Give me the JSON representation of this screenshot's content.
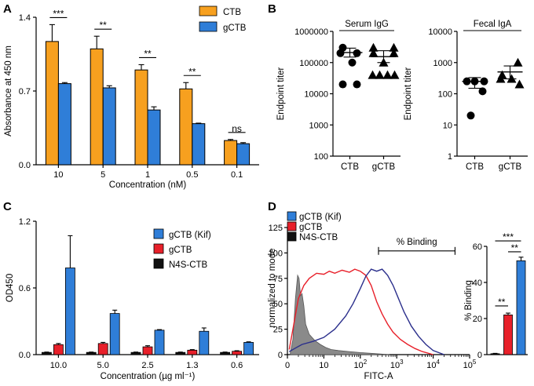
{
  "panels": {
    "A": "A",
    "B": "B",
    "C": "C",
    "D": "D"
  },
  "colors": {
    "orange": "#F7A01F",
    "blue": "#2F7ED8",
    "red": "#E8202A",
    "black": "#111111",
    "navy": "#2B2F8C",
    "redline": "#E8202A",
    "gray": "#8A8A8A"
  },
  "chart_data": [
    {
      "id": "A",
      "type": "bar",
      "title": "",
      "xlabel": "Concentration (nM)",
      "ylabel": "Absorbance at 450 nm",
      "ylim": [
        0,
        1.4
      ],
      "yticks": [
        "0.0",
        "0.7",
        "1.4"
      ],
      "categories": [
        "10",
        "5",
        "1",
        "0.5",
        "0.1"
      ],
      "series": [
        {
          "name": "CTB",
          "color": "#F7A01F",
          "values": [
            1.17,
            1.1,
            0.9,
            0.72,
            0.23
          ],
          "errors": [
            0.16,
            0.12,
            0.05,
            0.06,
            0.01
          ]
        },
        {
          "name": "gCTB",
          "color": "#2F7ED8",
          "values": [
            0.77,
            0.73,
            0.52,
            0.39,
            0.2
          ],
          "errors": [
            0.01,
            0.02,
            0.03,
            0.005,
            0.01
          ]
        }
      ],
      "significance": [
        "***",
        "**",
        "**",
        "**",
        "ns"
      ]
    },
    {
      "id": "B1",
      "type": "scatter",
      "title": "Serum IgG",
      "ylabel": "Endpoint titer",
      "yscale": "log",
      "ylim": [
        100,
        1000000
      ],
      "yticks": [
        "100",
        "1000",
        "10000",
        "100000",
        "1000000"
      ],
      "categories": [
        "CTB",
        "gCTB"
      ],
      "groups": [
        {
          "name": "CTB",
          "marker": "circle",
          "values": [
            300000,
            200000,
            200000,
            100000,
            20000,
            20000
          ],
          "mean": 210000,
          "sem_low": 150000,
          "sem_high": 290000
        },
        {
          "name": "gCTB",
          "marker": "triangle",
          "values": [
            300000,
            300000,
            200000,
            200000,
            100000,
            40000,
            40000,
            40000,
            40000
          ],
          "mean": 155000,
          "sem_low": 100000,
          "sem_high": 240000
        }
      ]
    },
    {
      "id": "B2",
      "type": "scatter",
      "title": "Fecal IgA",
      "ylabel": "Endpoint titer",
      "yscale": "log",
      "ylim": [
        1,
        10000
      ],
      "yticks": [
        "1",
        "10",
        "100",
        "1000",
        "10000"
      ],
      "categories": [
        "CTB",
        "gCTB"
      ],
      "groups": [
        {
          "name": "CTB",
          "marker": "circle",
          "values": [
            250,
            250,
            250,
            120,
            20
          ],
          "mean": 250,
          "sem_low": 150,
          "sem_high": 330
        },
        {
          "name": "gCTB",
          "marker": "triangle",
          "values": [
            1000,
            400,
            300,
            300,
            200
          ],
          "mean": 500,
          "sem_low": 300,
          "sem_high": 780
        }
      ]
    },
    {
      "id": "C",
      "type": "bar",
      "xlabel": "Concentration (µg ml⁻¹)",
      "ylabel": "OD450",
      "ylim": [
        0,
        1.2
      ],
      "yticks": [
        "0.0",
        "0.6",
        "1.2"
      ],
      "categories": [
        "10.0",
        "5.0",
        "2.5",
        "1.3",
        "0.6"
      ],
      "series": [
        {
          "name": "N4S-CTB",
          "color": "#111111",
          "values": [
            0.02,
            0.02,
            0.02,
            0.02,
            0.02
          ],
          "errors": [
            0.003,
            0.003,
            0.003,
            0.003,
            0.003
          ]
        },
        {
          "name": "gCTB",
          "color": "#E8202A",
          "values": [
            0.09,
            0.1,
            0.07,
            0.04,
            0.03
          ],
          "errors": [
            0.01,
            0.01,
            0.01,
            0.005,
            0.005
          ]
        },
        {
          "name": "gCTB (Kif)",
          "color": "#2F7ED8",
          "values": [
            0.78,
            0.37,
            0.22,
            0.21,
            0.11
          ],
          "errors": [
            0.29,
            0.03,
            0.005,
            0.03,
            0.005
          ]
        }
      ],
      "legend_order": [
        "gCTB (Kif)",
        "gCTB",
        "N4S-CTB"
      ]
    },
    {
      "id": "D1",
      "type": "line",
      "xlabel": "FITC-A",
      "ylabel": "normalized to mode",
      "xscale": "log",
      "ylim": [
        0,
        125
      ],
      "yticks": [
        "0",
        "25",
        "50",
        "75",
        "100",
        "125"
      ],
      "xticks": [
        "0",
        "10",
        "10^2",
        "10^3",
        "10^4",
        "10^5"
      ],
      "bracket_label": "% Binding",
      "series": [
        {
          "name": "N4S-CTB",
          "style": "filled",
          "color": "#8A8A8A",
          "x": [
            0.08,
            0.15,
            0.22,
            0.28,
            0.32,
            0.36,
            0.4,
            0.45,
            0.5,
            0.6,
            0.75,
            0.9,
            1.05,
            1.2,
            1.4,
            1.7,
            2.0,
            2.4,
            2.8
          ],
          "y": [
            2,
            15,
            55,
            78,
            75,
            58,
            60,
            48,
            30,
            20,
            14,
            10,
            7,
            5,
            4,
            3,
            2,
            1,
            0
          ]
        },
        {
          "name": "gCTB",
          "style": "line",
          "color": "#E8202A",
          "x": [
            0.05,
            0.15,
            0.3,
            0.45,
            0.6,
            0.8,
            1.0,
            1.15,
            1.3,
            1.5,
            1.7,
            1.85,
            2.0,
            2.15,
            2.3,
            2.45,
            2.6,
            2.75,
            2.9,
            3.1,
            3.3,
            3.5,
            3.7,
            4.0
          ],
          "y": [
            5,
            25,
            55,
            68,
            75,
            80,
            79,
            82,
            80,
            83,
            81,
            84,
            82,
            78,
            68,
            52,
            40,
            30,
            22,
            15,
            10,
            6,
            3,
            0
          ]
        },
        {
          "name": "gCTB (Kif)",
          "style": "line",
          "color": "#2B2F8C",
          "x": [
            0.05,
            0.2,
            0.4,
            0.7,
            1.0,
            1.3,
            1.6,
            1.8,
            2.0,
            2.15,
            2.3,
            2.45,
            2.6,
            2.75,
            2.9,
            3.05,
            3.2,
            3.4,
            3.6,
            3.8,
            4.0,
            4.3
          ],
          "y": [
            3,
            6,
            10,
            13,
            17,
            25,
            38,
            50,
            65,
            77,
            84,
            82,
            84,
            78,
            68,
            55,
            42,
            28,
            18,
            10,
            4,
            0
          ]
        }
      ],
      "legend_order": [
        "gCTB (Kif)",
        "gCTB",
        "N4S-CTB"
      ]
    },
    {
      "id": "D2",
      "type": "bar",
      "ylabel": "% Binding",
      "ylim": [
        0,
        60
      ],
      "yticks": [
        "0",
        "20",
        "40",
        "60"
      ],
      "categories": [
        "N4S-CTB",
        "gCTB",
        "gCTB (Kif)"
      ],
      "values": [
        0.5,
        22,
        52
      ],
      "errors": [
        0.2,
        1,
        2
      ],
      "colors": [
        "#111111",
        "#E8202A",
        "#2F7ED8"
      ],
      "significance": [
        "**",
        "***",
        "**"
      ]
    }
  ]
}
